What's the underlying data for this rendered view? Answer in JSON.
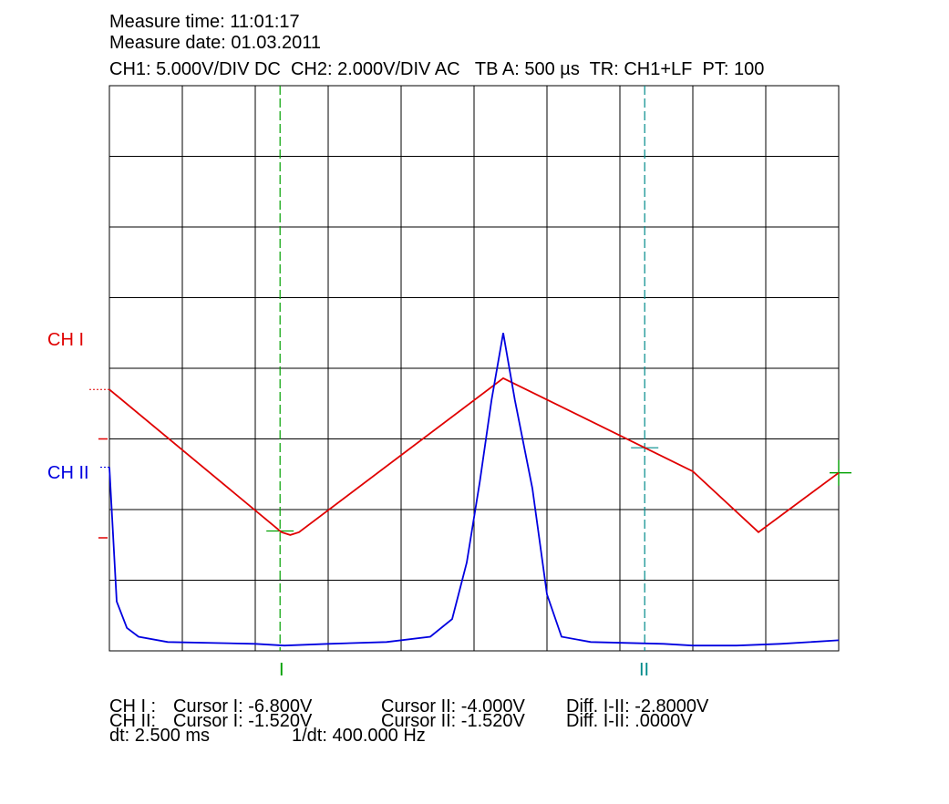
{
  "header": {
    "measure_time": "Measure time: 11:01:17",
    "measure_date": "Measure date: 01.03.2011",
    "settings": "CH1: 5.000V/DIV DC  CH2: 2.000V/DIV AC   TB A: 500 µs  TR: CH1+LF  PT: 100"
  },
  "channel_labels": {
    "ch1": "CH I",
    "ch2": "CH II"
  },
  "cursor_labels": {
    "c1": "I",
    "c2": "II"
  },
  "readout": {
    "row1": {
      "ch": "CH I :",
      "c1": "Cursor I: -6.800V",
      "c2": "Cursor II: -4.000V",
      "diff": "Diff. I-II: -2.8000V"
    },
    "row2": {
      "ch": "CH II:",
      "c1": "Cursor I: -1.520V",
      "c2": "Cursor II: -1.520V",
      "diff": "Diff. I-II: .0000V"
    },
    "row3": {
      "dt": "dt: 2.500 ms",
      "inv": "1/dt: 400.000 Hz"
    }
  },
  "colors": {
    "ch1": "#e00000",
    "ch2": "#0000e0",
    "cursor1": "#00a000",
    "cursor2": "#008b8b",
    "grid": "#000000"
  },
  "chart_data": {
    "type": "line",
    "x_unit": "ms",
    "xlim": [
      0,
      5
    ],
    "ylim_div": [
      -4,
      4
    ],
    "grid": true,
    "series": [
      {
        "name": "CH I",
        "units_per_div": 5,
        "unit": "V",
        "x": [
          0.0,
          1.18,
          1.24,
          1.3,
          2.7,
          4.0,
          4.45,
          5.0
        ],
        "y": [
          0.0,
          -10.1,
          -10.3,
          -10.1,
          0.8,
          -5.8,
          -10.1,
          -5.9
        ]
      },
      {
        "name": "CH II",
        "units_per_div": 2,
        "unit": "V",
        "x": [
          0.0,
          0.05,
          0.12,
          0.2,
          0.4,
          1.0,
          1.2,
          1.5,
          1.9,
          2.2,
          2.35,
          2.45,
          2.54,
          2.62,
          2.7,
          2.78,
          2.9,
          3.0,
          3.1,
          3.3,
          3.8,
          4.0,
          4.3,
          4.6,
          5.0
        ],
        "y": [
          0.0,
          -3.8,
          -4.55,
          -4.8,
          -4.95,
          -5.0,
          -5.05,
          -5.0,
          -4.95,
          -4.8,
          -4.3,
          -2.7,
          -0.4,
          1.9,
          3.8,
          1.9,
          -0.6,
          -3.6,
          -4.8,
          -4.95,
          -5.0,
          -5.05,
          -5.05,
          -5.0,
          -4.9
        ]
      }
    ],
    "cursors": {
      "t1_ms": 1.17,
      "t2_ms": 3.67
    },
    "ground_markers_div": {
      "ch1": -1,
      "ch2": -2.4
    },
    "channel_offsets_div": {
      "ch1": -0.3,
      "ch2": -1.4
    }
  }
}
